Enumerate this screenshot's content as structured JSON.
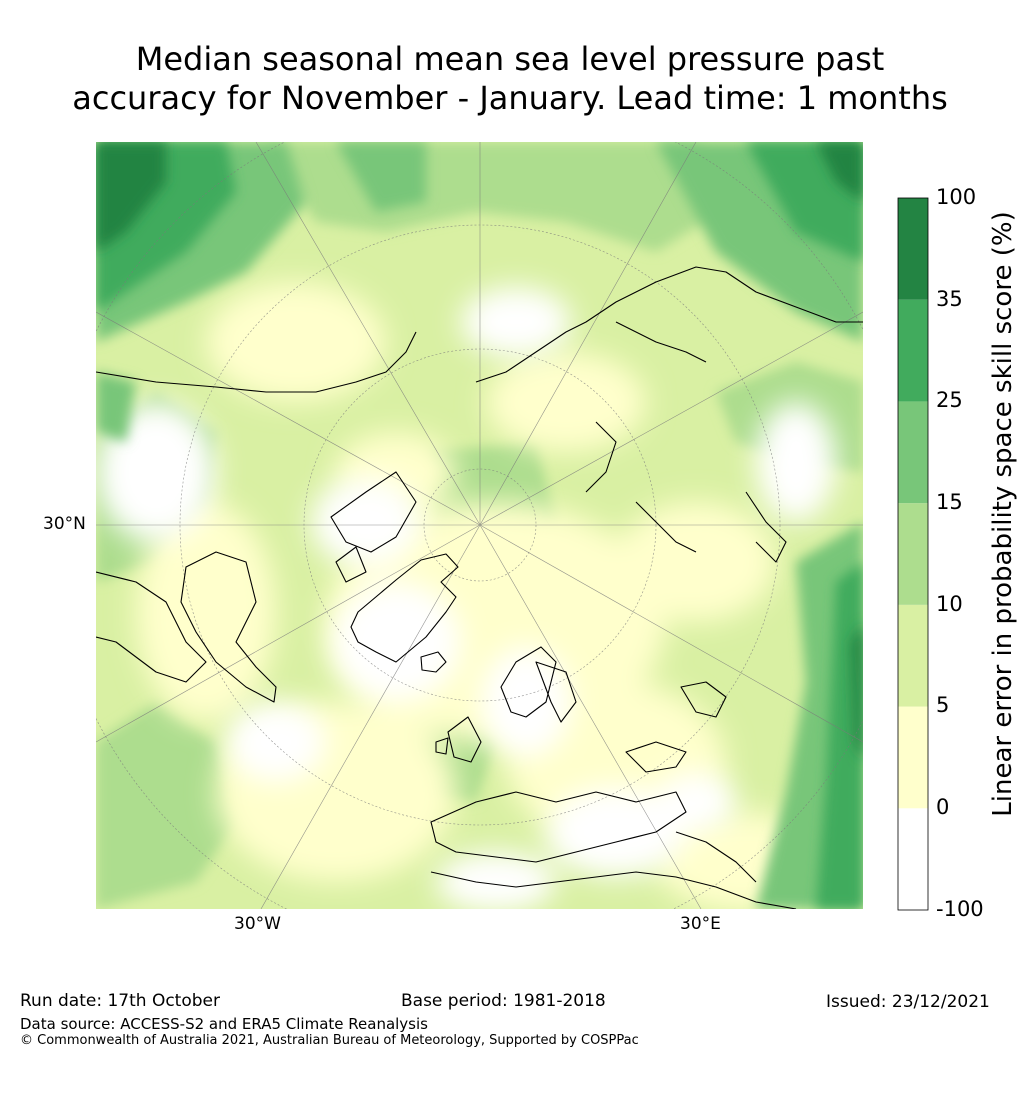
{
  "title": {
    "line1": "Median seasonal mean sea level pressure past",
    "line2": "accuracy for November - January. Lead time: 1 months"
  },
  "map": {
    "projection": "north-polar-stereographic",
    "graticule_labels": {
      "left": "30°N",
      "bottom_left": "30°W",
      "bottom_right": "30°E"
    }
  },
  "colorbar": {
    "label": "Linear error in probability space skill score (%)",
    "ticks": [
      "100",
      "35",
      "25",
      "15",
      "10",
      "5",
      "0",
      "-100"
    ],
    "bins": [
      {
        "from": "-100",
        "to": "0",
        "color": "#ffffff"
      },
      {
        "from": "0",
        "to": "5",
        "color": "#ffffcc"
      },
      {
        "from": "5",
        "to": "10",
        "color": "#d9f0a3"
      },
      {
        "from": "10",
        "to": "15",
        "color": "#addd8e"
      },
      {
        "from": "15",
        "to": "25",
        "color": "#78c679"
      },
      {
        "from": "25",
        "to": "35",
        "color": "#41ab5d"
      },
      {
        "from": "35",
        "to": "100",
        "color": "#238443"
      }
    ]
  },
  "footer": {
    "run_date": "Run date: 17th October",
    "base_period": "Base period: 1981-2018",
    "issued": "Issued: 23/12/2021",
    "data_source": "Data source: ACCESS-S2 and ERA5 Climate Reanalysis",
    "copyright": "© Commonwealth of Australia 2021, Australian Bureau of Meteorology, Supported by COSPPac"
  }
}
